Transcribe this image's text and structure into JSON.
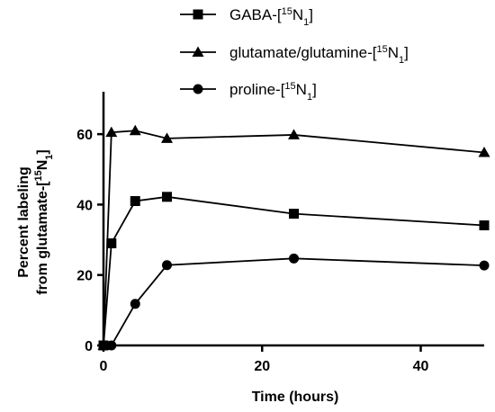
{
  "chart_data": {
    "type": "line",
    "xlabel": "Time (hours)",
    "ylabel_line1": "Percent labeling",
    "ylabel_line2_prefix": "from glutamate-[",
    "ylabel_iso_mass": "15",
    "ylabel_iso_elem": "N",
    "ylabel_iso_count": "1",
    "ylabel_suffix": "]",
    "xlim": [
      0,
      48
    ],
    "ylim": [
      0,
      70
    ],
    "xticks": [
      0,
      20,
      40
    ],
    "yticks": [
      0,
      20,
      40,
      60
    ],
    "grid": false,
    "legend_position": "top-center",
    "x": [
      0,
      1,
      4,
      8,
      24,
      48
    ],
    "series": [
      {
        "name": "GABA-[15N1]",
        "legend_prefix": "GABA-[",
        "iso_mass": "15",
        "iso_elem": "N",
        "iso_count": "1",
        "legend_suffix": "]",
        "marker": "square",
        "values": [
          0,
          29,
          41,
          42.2,
          37.4,
          34.1
        ]
      },
      {
        "name": "glutamate/glutamine-[15N1]",
        "legend_prefix": "glutamate/glutamine-[",
        "iso_mass": "15",
        "iso_elem": "N",
        "iso_count": "1",
        "legend_suffix": "]",
        "marker": "triangle",
        "values": [
          0,
          60.5,
          61,
          58.8,
          59.8,
          54.8
        ]
      },
      {
        "name": "proline-[15N1]",
        "legend_prefix": "proline-[",
        "iso_mass": "15",
        "iso_elem": "N",
        "iso_count": "1",
        "legend_suffix": "]",
        "marker": "circle",
        "values": [
          0,
          0,
          11.8,
          22.8,
          24.7,
          22.7
        ]
      }
    ],
    "color": "#000000"
  }
}
